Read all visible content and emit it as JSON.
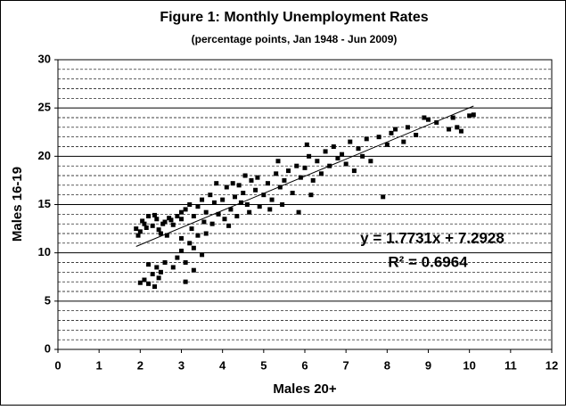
{
  "chart_data": {
    "type": "scatter",
    "title": "Figure 1: Monthly Unemployment Rates",
    "subtitle": "(percentage points, Jan 1948 - Jun 2009)",
    "x_label": "Males 20+",
    "y_label": "Males 16-19",
    "color": "#000000",
    "x": [
      1.9,
      2.0,
      2.1,
      2.2,
      2.3,
      2.4,
      2.5,
      2.6,
      2.7,
      2.8,
      1.95,
      2.15,
      2.35,
      2.55,
      2.75,
      2.9,
      3.0,
      2.05,
      2.45,
      2.65,
      2.0,
      2.1,
      2.2,
      2.3,
      2.4,
      2.5,
      2.2,
      2.35,
      2.6,
      2.45,
      2.8,
      2.9,
      3.0,
      3.1,
      3.2,
      3.3,
      3.4,
      3.5,
      3.1,
      3.6,
      3.3,
      3.0,
      3.1,
      3.2,
      3.3,
      3.4,
      3.5,
      3.6,
      3.7,
      3.8,
      3.9,
      3.0,
      3.25,
      3.55,
      4.0,
      4.1,
      4.2,
      4.3,
      4.4,
      4.5,
      4.6,
      4.7,
      4.8,
      4.9,
      4.05,
      4.25,
      4.35,
      4.55,
      4.65,
      4.85,
      3.85,
      3.75,
      4.15,
      4.45,
      5.0,
      5.1,
      5.2,
      5.3,
      5.4,
      5.5,
      5.6,
      5.7,
      5.8,
      5.9,
      6.0,
      6.1,
      6.2,
      6.3,
      6.4,
      6.5,
      6.6,
      6.7,
      6.8,
      6.9,
      5.15,
      5.45,
      5.85,
      5.35,
      6.15,
      6.05,
      7.0,
      7.1,
      7.2,
      7.3,
      7.4,
      7.5,
      7.6,
      7.8,
      7.9,
      8.0,
      8.2,
      8.4,
      8.5,
      8.7,
      8.9,
      9.0,
      9.2,
      9.5,
      9.7,
      9.8,
      10.0,
      10.1,
      9.6,
      8.1
    ],
    "y": [
      12.5,
      12.2,
      13.0,
      13.8,
      12.8,
      13.5,
      12.0,
      13.2,
      13.6,
      12.9,
      11.8,
      12.6,
      13.9,
      13.0,
      13.4,
      13.8,
      13.5,
      13.3,
      12.4,
      11.8,
      6.9,
      7.2,
      6.8,
      7.8,
      8.5,
      8.0,
      8.8,
      6.5,
      9.0,
      7.4,
      8.5,
      9.5,
      10.2,
      9.0,
      11.0,
      10.5,
      11.8,
      9.8,
      7.0,
      12.0,
      8.2,
      11.5,
      14.5,
      15.0,
      13.8,
      14.8,
      15.5,
      14.2,
      16.0,
      15.2,
      14.0,
      14.2,
      12.5,
      13.2,
      15.5,
      16.8,
      14.5,
      15.8,
      17.0,
      16.2,
      15.0,
      17.5,
      16.5,
      14.8,
      13.5,
      17.2,
      13.8,
      18.0,
      14.2,
      17.8,
      17.2,
      13.0,
      12.8,
      15.2,
      16.0,
      17.2,
      15.5,
      18.2,
      16.8,
      17.5,
      18.5,
      16.2,
      19.0,
      17.8,
      18.8,
      20.0,
      17.5,
      19.5,
      18.2,
      20.5,
      19.0,
      21.0,
      19.8,
      20.2,
      14.5,
      15.0,
      14.2,
      19.5,
      16.0,
      21.2,
      19.2,
      21.5,
      18.5,
      20.8,
      20.0,
      21.8,
      19.5,
      22.0,
      15.8,
      21.2,
      22.8,
      21.5,
      23.0,
      22.2,
      24.0,
      23.8,
      23.5,
      22.8,
      23.0,
      22.6,
      24.2,
      24.3,
      24.0,
      22.4
    ],
    "trendline": {
      "slope": 1.7731,
      "intercept": 7.2928,
      "x_range": [
        1.9,
        10.1
      ]
    },
    "annotations": [
      "y = 1.7731x + 7.2928",
      "R² = 0.6964"
    ],
    "xlim": [
      0,
      12
    ],
    "ylim": [
      0,
      30
    ],
    "xticks": [
      0,
      1,
      2,
      3,
      4,
      5,
      6,
      7,
      8,
      9,
      10,
      11,
      12
    ],
    "yticks": [
      0,
      5,
      10,
      15,
      20,
      25,
      30
    ],
    "yminor": [
      1,
      2,
      3,
      4,
      6,
      7,
      8,
      9,
      11,
      12,
      13,
      14,
      16,
      17,
      18,
      19,
      21,
      22,
      23,
      24,
      26,
      27,
      28,
      29
    ],
    "grid": true
  }
}
